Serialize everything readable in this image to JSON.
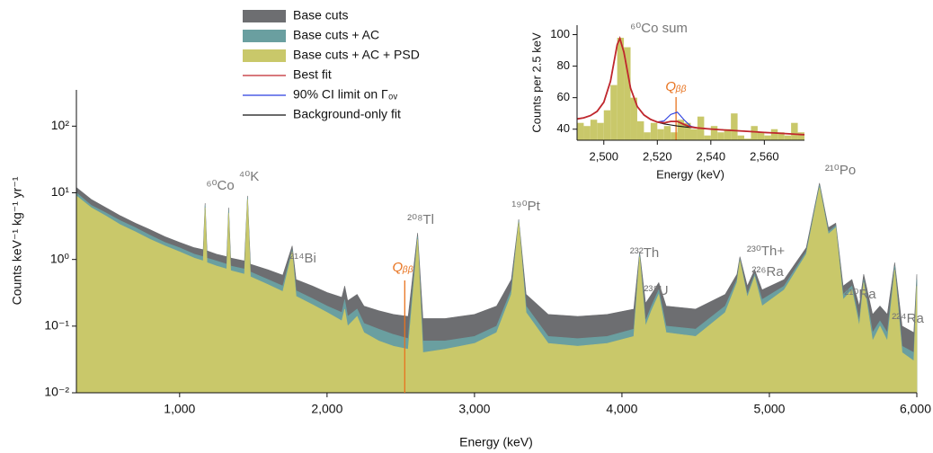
{
  "chart_data": [
    {
      "type": "area",
      "x_label": "Energy (keV)",
      "y_label": "Counts keV⁻¹ kg⁻¹ yr⁻¹",
      "log_y": true,
      "xlim": [
        300,
        6000
      ],
      "xticks": [
        {
          "value": 1000,
          "label": "1,000"
        },
        {
          "value": 2000,
          "label": "2,000"
        },
        {
          "value": 3000,
          "label": "3,000"
        },
        {
          "value": 4000,
          "label": "4,000"
        },
        {
          "value": 5000,
          "label": "5,000"
        },
        {
          "value": 6000,
          "label": "6,000"
        }
      ],
      "ylim": [
        0.01,
        350
      ],
      "yticks": [
        {
          "value": 0.01,
          "label": "10⁻²"
        },
        {
          "value": 0.1,
          "label": "10⁻¹"
        },
        {
          "value": 1,
          "label": "10⁰"
        },
        {
          "value": 10,
          "label": "10¹"
        },
        {
          "value": 100,
          "label": "10²"
        }
      ],
      "x": [
        300,
        400,
        500,
        600,
        700,
        800,
        900,
        1000,
        1100,
        1160,
        1173,
        1186,
        1250,
        1320,
        1333,
        1346,
        1440,
        1461,
        1480,
        1600,
        1700,
        1764,
        1790,
        1900,
        2000,
        2100,
        2120,
        2140,
        2204,
        2250,
        2350,
        2450,
        2550,
        2614,
        2650,
        2800,
        3000,
        3150,
        3250,
        3300,
        3350,
        3500,
        3700,
        3900,
        4080,
        4120,
        4160,
        4200,
        4250,
        4300,
        4500,
        4700,
        4780,
        4800,
        4850,
        4900,
        4950,
        5100,
        5250,
        5340,
        5400,
        5450,
        5500,
        5560,
        5610,
        5640,
        5700,
        5750,
        5800,
        5850,
        5900,
        5980,
        6000
      ],
      "series": [
        {
          "name": "Base cuts",
          "color": "#6d6e71",
          "values": [
            12,
            8,
            6,
            4.5,
            3.5,
            2.8,
            2.2,
            1.8,
            1.5,
            1.4,
            7,
            1.35,
            1.2,
            1.1,
            6,
            1.05,
            0.95,
            9,
            0.85,
            0.7,
            0.58,
            1.6,
            0.5,
            0.4,
            0.32,
            0.27,
            0.4,
            0.24,
            0.3,
            0.2,
            0.17,
            0.15,
            0.14,
            2.5,
            0.13,
            0.13,
            0.15,
            0.2,
            0.5,
            4,
            0.3,
            0.15,
            0.14,
            0.15,
            0.18,
            1.3,
            0.22,
            0.3,
            0.45,
            0.2,
            0.18,
            0.3,
            0.6,
            1.1,
            0.4,
            0.7,
            0.35,
            0.5,
            1.5,
            14,
            3,
            3.5,
            0.4,
            0.5,
            0.2,
            0.6,
            0.15,
            0.2,
            0.15,
            0.9,
            0.1,
            0.08,
            0.6
          ]
        },
        {
          "name": "Base cuts + AC",
          "color": "#6a9fa0",
          "values": [
            10,
            6.5,
            5,
            3.8,
            3,
            2.3,
            1.8,
            1.5,
            1.2,
            1.1,
            6.5,
            1.05,
            0.95,
            0.85,
            5.5,
            0.8,
            0.72,
            8.5,
            0.65,
            0.5,
            0.4,
            1.4,
            0.34,
            0.26,
            0.2,
            0.16,
            0.25,
            0.14,
            0.18,
            0.11,
            0.09,
            0.075,
            0.065,
            2.2,
            0.06,
            0.06,
            0.07,
            0.1,
            0.35,
            3.8,
            0.2,
            0.07,
            0.065,
            0.07,
            0.09,
            1.2,
            0.12,
            0.2,
            0.35,
            0.1,
            0.09,
            0.2,
            0.5,
            1,
            0.3,
            0.6,
            0.25,
            0.4,
            1.3,
            13,
            2.6,
            3.2,
            0.3,
            0.4,
            0.12,
            0.5,
            0.08,
            0.12,
            0.08,
            0.8,
            0.05,
            0.04,
            0.5
          ]
        },
        {
          "name": "Base cuts + AC + PSD",
          "color": "#c9c86a",
          "values": [
            9,
            6,
            4.5,
            3.3,
            2.6,
            2,
            1.6,
            1.3,
            1.05,
            0.95,
            6,
            0.9,
            0.8,
            0.72,
            5,
            0.68,
            0.6,
            8,
            0.55,
            0.42,
            0.33,
            1.3,
            0.28,
            0.21,
            0.16,
            0.12,
            0.18,
            0.1,
            0.14,
            0.08,
            0.06,
            0.05,
            0.045,
            2,
            0.04,
            0.045,
            0.055,
            0.08,
            0.3,
            3.6,
            0.16,
            0.055,
            0.05,
            0.055,
            0.07,
            1.1,
            0.1,
            0.17,
            0.3,
            0.08,
            0.07,
            0.16,
            0.45,
            0.95,
            0.27,
            0.55,
            0.2,
            0.35,
            1.2,
            12,
            2.4,
            3,
            0.25,
            0.35,
            0.1,
            0.45,
            0.06,
            0.1,
            0.06,
            0.7,
            0.04,
            0.03,
            0.4
          ]
        }
      ],
      "annotations": [
        "⁶⁰Co",
        "⁴⁰K",
        "²¹⁴Bi",
        "²⁰⁸Tl",
        "¹⁹⁰Pt",
        "²³²Th",
        "²³⁸U",
        "²³⁰Th+",
        "²²⁶Ra",
        "²¹⁰Po",
        "²¹⁰Ra",
        "²²⁴Ra"
      ],
      "q_value": {
        "label": "Qᵦᵦ",
        "value": 2527
      }
    },
    {
      "type": "histogram",
      "x_label": "Energy (keV)",
      "y_label": "Counts per 2.5 keV",
      "xlim": [
        2490,
        2575
      ],
      "xticks": [
        {
          "value": 2500,
          "label": "2,500"
        },
        {
          "value": 2520,
          "label": "2,520"
        },
        {
          "value": 2540,
          "label": "2,540"
        },
        {
          "value": 2560,
          "label": "2,560"
        }
      ],
      "ylim": [
        33,
        106
      ],
      "yticks": [
        40,
        60,
        80,
        100
      ],
      "color": "#c9c86a",
      "bins": [
        2490,
        2492.5,
        2495,
        2497.5,
        2500,
        2502.5,
        2505,
        2507.5,
        2510,
        2512.5,
        2515,
        2517.5,
        2520,
        2522.5,
        2525,
        2527.5,
        2530,
        2532.5,
        2535,
        2537.5,
        2540,
        2542.5,
        2545,
        2547.5,
        2550,
        2552.5,
        2555,
        2557.5,
        2560,
        2562.5,
        2565,
        2567.5,
        2570,
        2572.5,
        2575
      ],
      "counts": [
        44,
        42,
        46,
        44,
        52,
        68,
        98,
        92,
        60,
        45,
        38,
        44,
        40,
        42,
        38,
        46,
        44,
        40,
        48,
        36,
        42,
        38,
        40,
        50,
        36,
        34,
        42,
        38,
        36,
        40,
        38,
        36,
        44,
        38
      ],
      "annotations": [
        "⁶⁰Co sum"
      ],
      "q_value": {
        "label": "Qᵦᵦ",
        "value": 2527
      },
      "lines": {
        "x": [
          2490,
          2492.5,
          2495,
          2497.5,
          2500,
          2502.5,
          2505,
          2506,
          2507.5,
          2510,
          2512.5,
          2515,
          2517.5,
          2520,
          2522.5,
          2525,
          2527.5,
          2530,
          2532.5,
          2535,
          2540,
          2545,
          2550,
          2555,
          2560,
          2565,
          2570,
          2575
        ],
        "series": [
          {
            "name": "Best fit",
            "color": "#c0272d",
            "values": [
              46.5,
              47.2,
              48.6,
              51.3,
              57.1,
              70.4,
              93.5,
              97.6,
              88.9,
              66.1,
              54.4,
              49,
              46.2,
              44.5,
              44,
              44.9,
              44.9,
              43,
              41.4,
              40.8,
              40.1,
              39.5,
              39,
              38.5,
              37.9,
              37.5,
              37,
              36.5
            ]
          },
          {
            "name": "90% CI limit on Γ₀ᵥ",
            "color": "#2b3de0",
            "values": [
              46.5,
              47.2,
              48.6,
              51.3,
              57.1,
              70.4,
              93.5,
              97.6,
              88.9,
              66.1,
              54.4,
              49,
              46.2,
              44.6,
              45.2,
              49.3,
              50.8,
              45.9,
              41.9,
              40.8,
              40.1,
              39.5,
              39,
              38.5,
              37.9,
              37.5,
              37,
              36.5
            ]
          },
          {
            "name": "Background-only fit",
            "color": "#111111",
            "values": [
              46.5,
              47.2,
              48.6,
              51.3,
              57.1,
              70.4,
              93.5,
              97.6,
              88.9,
              66.1,
              54.4,
              49,
              46.2,
              44.4,
              43.4,
              42.7,
              42,
              41.5,
              41.1,
              40.8,
              40.1,
              39.5,
              39,
              38.5,
              37.9,
              37.5,
              37,
              36.5
            ]
          }
        ]
      }
    }
  ]
}
